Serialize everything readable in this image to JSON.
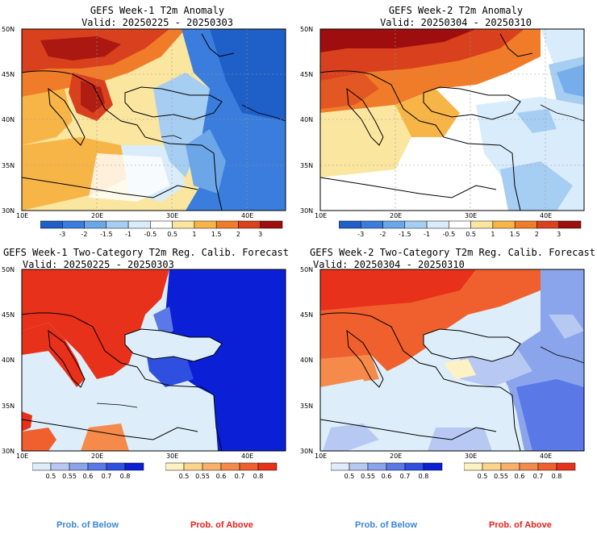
{
  "panels": [
    {
      "title": "GEFS Week-1 T2m Anomaly",
      "valid": "Valid: 20250225 - 20250303"
    },
    {
      "title": "GEFS Week-2 T2m Anomaly",
      "valid": "Valid: 20250304 - 20250310"
    },
    {
      "title": "GEFS Week-1 Two-Category T2m Reg. Calib. Forecast",
      "valid": "Valid: 20250225 - 20250303"
    },
    {
      "title": "GEFS Week-2 Two-Category T2m Reg. Calib. Forecast",
      "valid": "Valid: 20250304 - 20250310"
    }
  ],
  "lat_labels": [
    "50N",
    "45N",
    "40N",
    "35N",
    "30N"
  ],
  "lon_labels": [
    "10E",
    "20E",
    "30E",
    "40E"
  ],
  "anomaly_colorbar": {
    "labels": [
      "-3",
      "-2",
      "-1.5",
      "-1",
      "-0.5",
      "0.5",
      "1",
      "1.5",
      "2",
      "3"
    ],
    "colors": [
      "#1f5fc8",
      "#3b7ddc",
      "#6aa6e8",
      "#a6cdf2",
      "#d9ecfb",
      "#ffffff",
      "#fbe6a0",
      "#f7b548",
      "#f07c2a",
      "#d9401e",
      "#9e0e0e"
    ]
  },
  "below_colorbar": {
    "labels": [
      "0.5",
      "0.55",
      "0.6",
      "0.7",
      "0.8"
    ],
    "colors": [
      "#ddeefa",
      "#b7c9f3",
      "#8aa5ec",
      "#5a78e6",
      "#2f4fe0",
      "#0a1fd6"
    ]
  },
  "above_colorbar": {
    "labels": [
      "0.5",
      "0.55",
      "0.6",
      "0.7",
      "0.8"
    ],
    "colors": [
      "#fdf3c2",
      "#fcd58a",
      "#f9b06a",
      "#f58a4b",
      "#f0602e",
      "#e8311a"
    ]
  },
  "legend": {
    "below": "Prob. of Below",
    "above": "Prob. of Above",
    "below_color": "#3a86d6",
    "above_color": "#e8211a"
  }
}
